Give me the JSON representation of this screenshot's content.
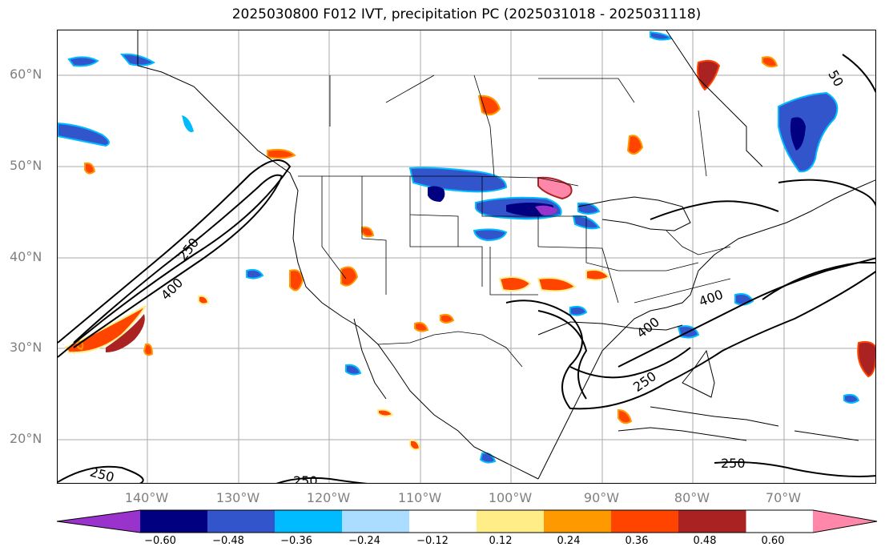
{
  "title": "2025030800 F012 IVT, precipitation PC (2025031018 - 2025031118)",
  "lat_labels": [
    "60°N",
    "50°N",
    "40°N",
    "30°N",
    "20°N"
  ],
  "lon_labels": [
    "140°W",
    "130°W",
    "120°W",
    "110°W",
    "100°W",
    "90°W",
    "80°W",
    "70°W"
  ],
  "contour_labels": [
    "250",
    "400",
    "250",
    "400",
    "250",
    "400",
    "250",
    "250",
    "50"
  ],
  "colorbar": {
    "ticks": [
      "−0.60",
      "−0.48",
      "−0.36",
      "−0.24",
      "−0.12",
      "0.12",
      "0.24",
      "0.36",
      "0.48",
      "0.60"
    ],
    "colors": [
      "#9933cc",
      "#000080",
      "#3355cc",
      "#00bbff",
      "#aaddff",
      "#ffffff",
      "#ffee88",
      "#ff9900",
      "#ff4400",
      "#aa2222",
      "#ff88aa"
    ]
  },
  "map_colors": {
    "neg_strong": "#000080",
    "neg_mid": "#3355cc",
    "neg_light": "#00bbff",
    "neg_faint": "#aaddff",
    "pos_faint": "#ffee88",
    "pos_mid": "#ff9900",
    "pos_strong": "#ff4400",
    "pos_dark": "#aa2222",
    "pos_max": "#ff88aa",
    "purple": "#9933cc"
  }
}
